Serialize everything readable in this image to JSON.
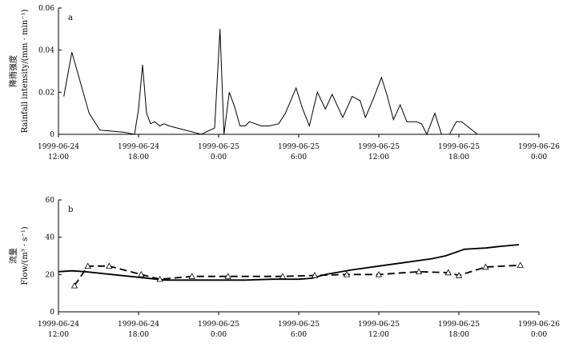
{
  "chart_data": [
    {
      "type": "line",
      "panel_label": "a",
      "ylabel_cn": "降雨强度",
      "ylabel_en": "Rainfall intensity/(mm · min⁻¹)",
      "xlabel": "",
      "x_unit": "hours after 1999-06-24 12:00",
      "xlim": [
        0,
        36
      ],
      "ylim": [
        0,
        0.06
      ],
      "ytick_labels": [
        "0",
        "0.02",
        "0.04",
        "0.06"
      ],
      "yticks": [
        0,
        0.02,
        0.04,
        0.06
      ],
      "xticks": [
        0,
        6,
        12,
        18,
        24,
        30,
        36
      ],
      "xtick_labels": [
        [
          "1999-06-24",
          "12:00"
        ],
        [
          "1999-06-24",
          "18:00"
        ],
        [
          "1999-06-25",
          "0:00"
        ],
        [
          "1999-06-25",
          "6:00"
        ],
        [
          "1999-06-25",
          "12:00"
        ],
        [
          "1999-06-25",
          "18:00"
        ],
        [
          "1999-06-26",
          "0:00"
        ]
      ],
      "grid": false,
      "series": [
        {
          "x": [
            0.4,
            1.0,
            2.3,
            3.1,
            4.9,
            5.7,
            6.0,
            6.3,
            6.6,
            6.9,
            7.2,
            7.6,
            7.9,
            8.3,
            10.7,
            11.7,
            12.1,
            12.4,
            12.8,
            13.2,
            13.6,
            14.0,
            14.3,
            15.2,
            15.8,
            16.5,
            17.0,
            17.8,
            18.3,
            18.8,
            19.4,
            20.0,
            20.5,
            21.3,
            22.0,
            22.6,
            23.0,
            23.6,
            24.2,
            24.6,
            25.1,
            25.6,
            26.1,
            26.8,
            27.2,
            27.6,
            28.2,
            28.7,
            29.3,
            29.8,
            30.2,
            31.4,
            31.8,
            32.1,
            32.6,
            32.9
          ],
          "y": [
            0.018,
            0.039,
            0.01,
            0.002,
            0.001,
            0.0,
            0.012,
            0.033,
            0.01,
            0.005,
            0.006,
            0.004,
            0.005,
            0.004,
            0.0,
            0.003,
            0.05,
            0.0,
            0.02,
            0.013,
            0.004,
            0.004,
            0.006,
            0.004,
            0.004,
            0.005,
            0.01,
            0.022,
            0.012,
            0.004,
            0.02,
            0.012,
            0.019,
            0.008,
            0.018,
            0.016,
            0.008,
            0.017,
            0.027,
            0.019,
            0.007,
            0.014,
            0.006,
            0.006,
            0.005,
            0.0,
            0.01,
            0.0,
            0.0,
            0.006,
            0.006,
            0.0,
            0.0,
            0.0,
            0.0,
            0.0
          ]
        }
      ]
    },
    {
      "type": "line",
      "panel_label": "b",
      "ylabel_cn": "流量",
      "ylabel_en": "Flow/(m³ · s⁻¹)",
      "xlabel": "",
      "x_unit": "hours after 1999-06-24 12:00",
      "xlim": [
        0,
        36
      ],
      "ylim": [
        0,
        60
      ],
      "ytick_labels": [
        "0",
        "20",
        "40",
        "60"
      ],
      "yticks": [
        0,
        20,
        40,
        60
      ],
      "xticks": [
        0,
        6,
        12,
        18,
        24,
        30,
        36
      ],
      "xtick_labels": [
        [
          "1999-06-24",
          "12:00"
        ],
        [
          "1999-06-24",
          "18:00"
        ],
        [
          "1999-06-25",
          "0:00"
        ],
        [
          "1999-06-25",
          "6:00"
        ],
        [
          "1999-06-25",
          "12:00"
        ],
        [
          "1999-06-25",
          "18:00"
        ],
        [
          "1999-06-26",
          "0:00"
        ]
      ],
      "grid": false,
      "series": [
        {
          "style": "solid",
          "x": [
            0.0,
            1.0,
            2.0,
            4.0,
            6.0,
            8.0,
            10.0,
            12.0,
            14.0,
            16.0,
            18.0,
            19.0,
            20.0,
            22.0,
            24.0,
            26.0,
            28.0,
            29.0,
            30.0,
            30.4,
            31.0,
            32.0,
            33.0,
            34.5
          ],
          "y": [
            21.5,
            22.0,
            21.5,
            20.0,
            18.5,
            17.0,
            17.0,
            17.0,
            17.0,
            17.5,
            17.5,
            18.0,
            20.0,
            22.5,
            24.5,
            26.5,
            28.5,
            30.0,
            32.5,
            33.5,
            33.8,
            34.2,
            35.0,
            36.0
          ]
        },
        {
          "style": "dashed-triangle",
          "x": [
            1.2,
            2.2,
            3.8,
            6.2,
            7.6,
            10.0,
            12.7,
            16.8,
            19.2,
            21.6,
            24.0,
            27.0,
            29.2,
            30.0,
            32.0,
            34.6
          ],
          "y": [
            14.0,
            24.5,
            24.5,
            20.0,
            17.5,
            19.0,
            19.0,
            19.0,
            19.5,
            20.0,
            20.0,
            21.5,
            21.0,
            19.5,
            24.0,
            25.0
          ]
        }
      ]
    }
  ]
}
